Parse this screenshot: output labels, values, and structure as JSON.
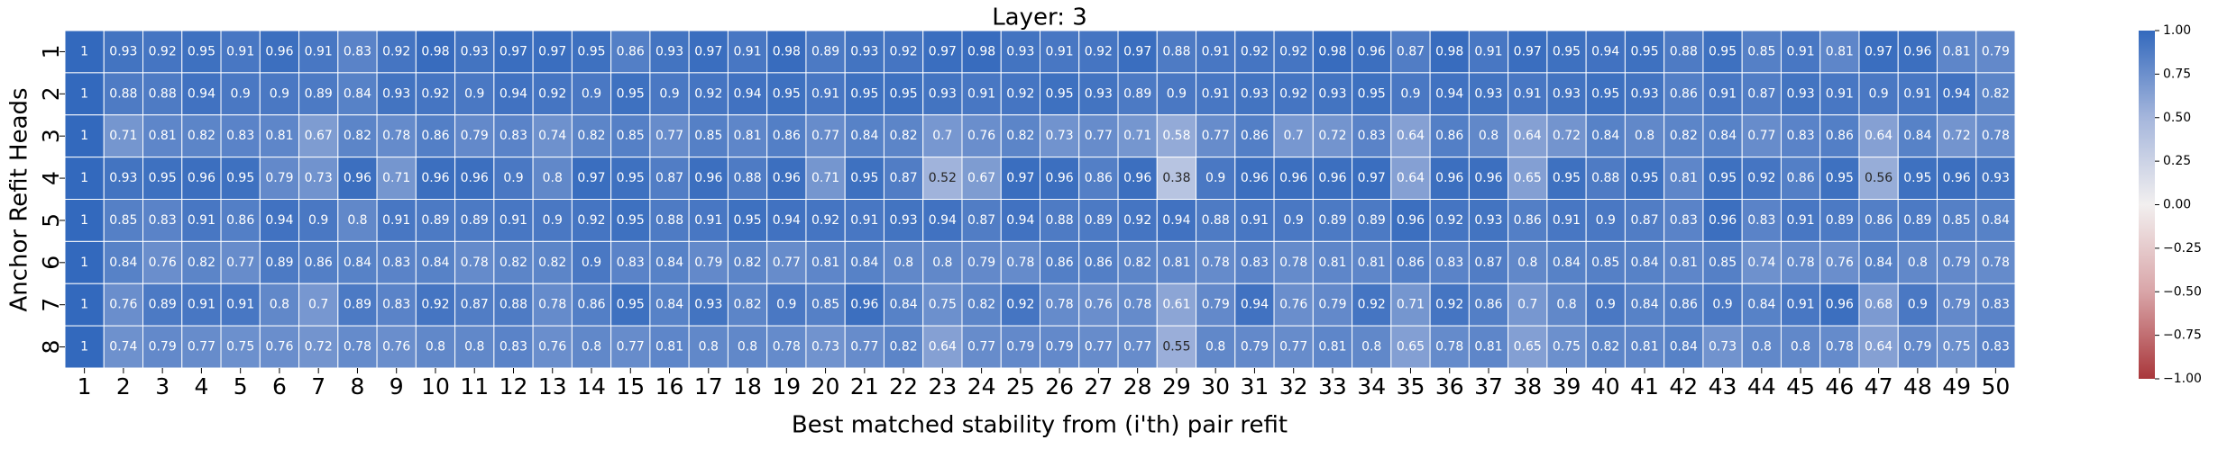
{
  "chart_data": {
    "type": "heatmap",
    "title": "Layer: 3",
    "x_label": "Best matched stability from (i'th) pair refit",
    "y_label": "Anchor Refit Heads",
    "x_categories": [
      "1",
      "2",
      "3",
      "4",
      "5",
      "6",
      "7",
      "8",
      "9",
      "10",
      "11",
      "12",
      "13",
      "14",
      "15",
      "16",
      "17",
      "18",
      "19",
      "20",
      "21",
      "22",
      "23",
      "24",
      "25",
      "26",
      "27",
      "28",
      "29",
      "30",
      "31",
      "32",
      "33",
      "34",
      "35",
      "36",
      "37",
      "38",
      "39",
      "40",
      "41",
      "42",
      "43",
      "44",
      "45",
      "46",
      "47",
      "48",
      "49",
      "50"
    ],
    "y_categories": [
      "1",
      "2",
      "3",
      "4",
      "5",
      "6",
      "7",
      "8"
    ],
    "values": [
      [
        1,
        0.93,
        0.92,
        0.95,
        0.91,
        0.96,
        0.91,
        0.83,
        0.92,
        0.98,
        0.93,
        0.97,
        0.97,
        0.95,
        0.86,
        0.93,
        0.97,
        0.91,
        0.98,
        0.89,
        0.93,
        0.92,
        0.97,
        0.98,
        0.93,
        0.91,
        0.92,
        0.97,
        0.88,
        0.91,
        0.92,
        0.92,
        0.98,
        0.96,
        0.87,
        0.98,
        0.91,
        0.97,
        0.95,
        0.94,
        0.95,
        0.88,
        0.95,
        0.85,
        0.91,
        0.81,
        0.97,
        0.96,
        0.81,
        0.79
      ],
      [
        1,
        0.88,
        0.88,
        0.94,
        0.9,
        0.9,
        0.89,
        0.84,
        0.93,
        0.92,
        0.9,
        0.94,
        0.92,
        0.9,
        0.95,
        0.9,
        0.92,
        0.94,
        0.95,
        0.91,
        0.95,
        0.95,
        0.93,
        0.91,
        0.92,
        0.95,
        0.93,
        0.89,
        0.9,
        0.91,
        0.93,
        0.92,
        0.93,
        0.95,
        0.9,
        0.94,
        0.93,
        0.91,
        0.93,
        0.95,
        0.93,
        0.86,
        0.91,
        0.87,
        0.93,
        0.91,
        0.9,
        0.91,
        0.94,
        0.82
      ],
      [
        1,
        0.71,
        0.81,
        0.82,
        0.83,
        0.81,
        0.67,
        0.82,
        0.78,
        0.86,
        0.79,
        0.83,
        0.74,
        0.82,
        0.85,
        0.77,
        0.85,
        0.81,
        0.86,
        0.77,
        0.84,
        0.82,
        0.7,
        0.76,
        0.82,
        0.73,
        0.77,
        0.71,
        0.58,
        0.77,
        0.86,
        0.7,
        0.72,
        0.83,
        0.64,
        0.86,
        0.8,
        0.64,
        0.72,
        0.84,
        0.8,
        0.82,
        0.84,
        0.77,
        0.83,
        0.86,
        0.64,
        0.84,
        0.72,
        0.78
      ],
      [
        1,
        0.93,
        0.95,
        0.96,
        0.95,
        0.79,
        0.73,
        0.96,
        0.71,
        0.96,
        0.96,
        0.9,
        0.8,
        0.97,
        0.95,
        0.87,
        0.96,
        0.88,
        0.96,
        0.71,
        0.95,
        0.87,
        0.52,
        0.67,
        0.97,
        0.96,
        0.86,
        0.96,
        0.38,
        0.9,
        0.96,
        0.96,
        0.96,
        0.97,
        0.64,
        0.96,
        0.96,
        0.65,
        0.95,
        0.88,
        0.95,
        0.81,
        0.95,
        0.92,
        0.86,
        0.95,
        0.56,
        0.95,
        0.96,
        0.93
      ],
      [
        1,
        0.85,
        0.83,
        0.91,
        0.86,
        0.94,
        0.9,
        0.8,
        0.91,
        0.89,
        0.89,
        0.91,
        0.9,
        0.92,
        0.95,
        0.88,
        0.91,
        0.95,
        0.94,
        0.92,
        0.91,
        0.93,
        0.94,
        0.87,
        0.94,
        0.88,
        0.89,
        0.92,
        0.94,
        0.88,
        0.91,
        0.9,
        0.89,
        0.89,
        0.96,
        0.92,
        0.93,
        0.86,
        0.91,
        0.9,
        0.87,
        0.83,
        0.96,
        0.83,
        0.91,
        0.89,
        0.86,
        0.89,
        0.85,
        0.84
      ],
      [
        1,
        0.84,
        0.76,
        0.82,
        0.77,
        0.89,
        0.86,
        0.84,
        0.83,
        0.84,
        0.78,
        0.82,
        0.82,
        0.9,
        0.83,
        0.84,
        0.79,
        0.82,
        0.77,
        0.81,
        0.84,
        0.8,
        0.8,
        0.79,
        0.78,
        0.86,
        0.86,
        0.82,
        0.81,
        0.78,
        0.83,
        0.78,
        0.81,
        0.81,
        0.86,
        0.83,
        0.87,
        0.8,
        0.84,
        0.85,
        0.84,
        0.81,
        0.85,
        0.74,
        0.78,
        0.76,
        0.84,
        0.8,
        0.79,
        0.78
      ],
      [
        1,
        0.76,
        0.89,
        0.91,
        0.91,
        0.8,
        0.7,
        0.89,
        0.83,
        0.92,
        0.87,
        0.88,
        0.78,
        0.86,
        0.95,
        0.84,
        0.93,
        0.82,
        0.9,
        0.85,
        0.96,
        0.84,
        0.75,
        0.82,
        0.92,
        0.78,
        0.76,
        0.78,
        0.61,
        0.79,
        0.94,
        0.76,
        0.79,
        0.92,
        0.71,
        0.92,
        0.86,
        0.7,
        0.8,
        0.9,
        0.84,
        0.86,
        0.9,
        0.84,
        0.91,
        0.96,
        0.68,
        0.9,
        0.79,
        0.83
      ],
      [
        1,
        0.74,
        0.79,
        0.77,
        0.75,
        0.76,
        0.72,
        0.78,
        0.76,
        0.8,
        0.8,
        0.83,
        0.76,
        0.8,
        0.77,
        0.81,
        0.8,
        0.8,
        0.78,
        0.73,
        0.77,
        0.82,
        0.64,
        0.77,
        0.79,
        0.79,
        0.77,
        0.77,
        0.55,
        0.8,
        0.79,
        0.77,
        0.81,
        0.8,
        0.65,
        0.78,
        0.81,
        0.65,
        0.75,
        0.82,
        0.81,
        0.84,
        0.73,
        0.8,
        0.8,
        0.78,
        0.64,
        0.79,
        0.75,
        0.83
      ]
    ],
    "clim": [
      -1,
      1
    ],
    "colors": [
      "#a9373b",
      "#d9a5a8",
      "#f2efef",
      "#a5b6dc",
      "#3369bd"
    ],
    "cbar_ticks": [
      {
        "value": 1,
        "label": "1.00"
      },
      {
        "value": 0.75,
        "label": "0.75"
      },
      {
        "value": 0.5,
        "label": "0.50"
      },
      {
        "value": 0.25,
        "label": "0.25"
      },
      {
        "value": 0,
        "label": "0.00"
      },
      {
        "value": -0.25,
        "label": "−0.25"
      },
      {
        "value": -0.5,
        "label": "−0.50"
      },
      {
        "value": -0.75,
        "label": "−0.75"
      },
      {
        "value": -1,
        "label": "−1.00"
      }
    ]
  }
}
